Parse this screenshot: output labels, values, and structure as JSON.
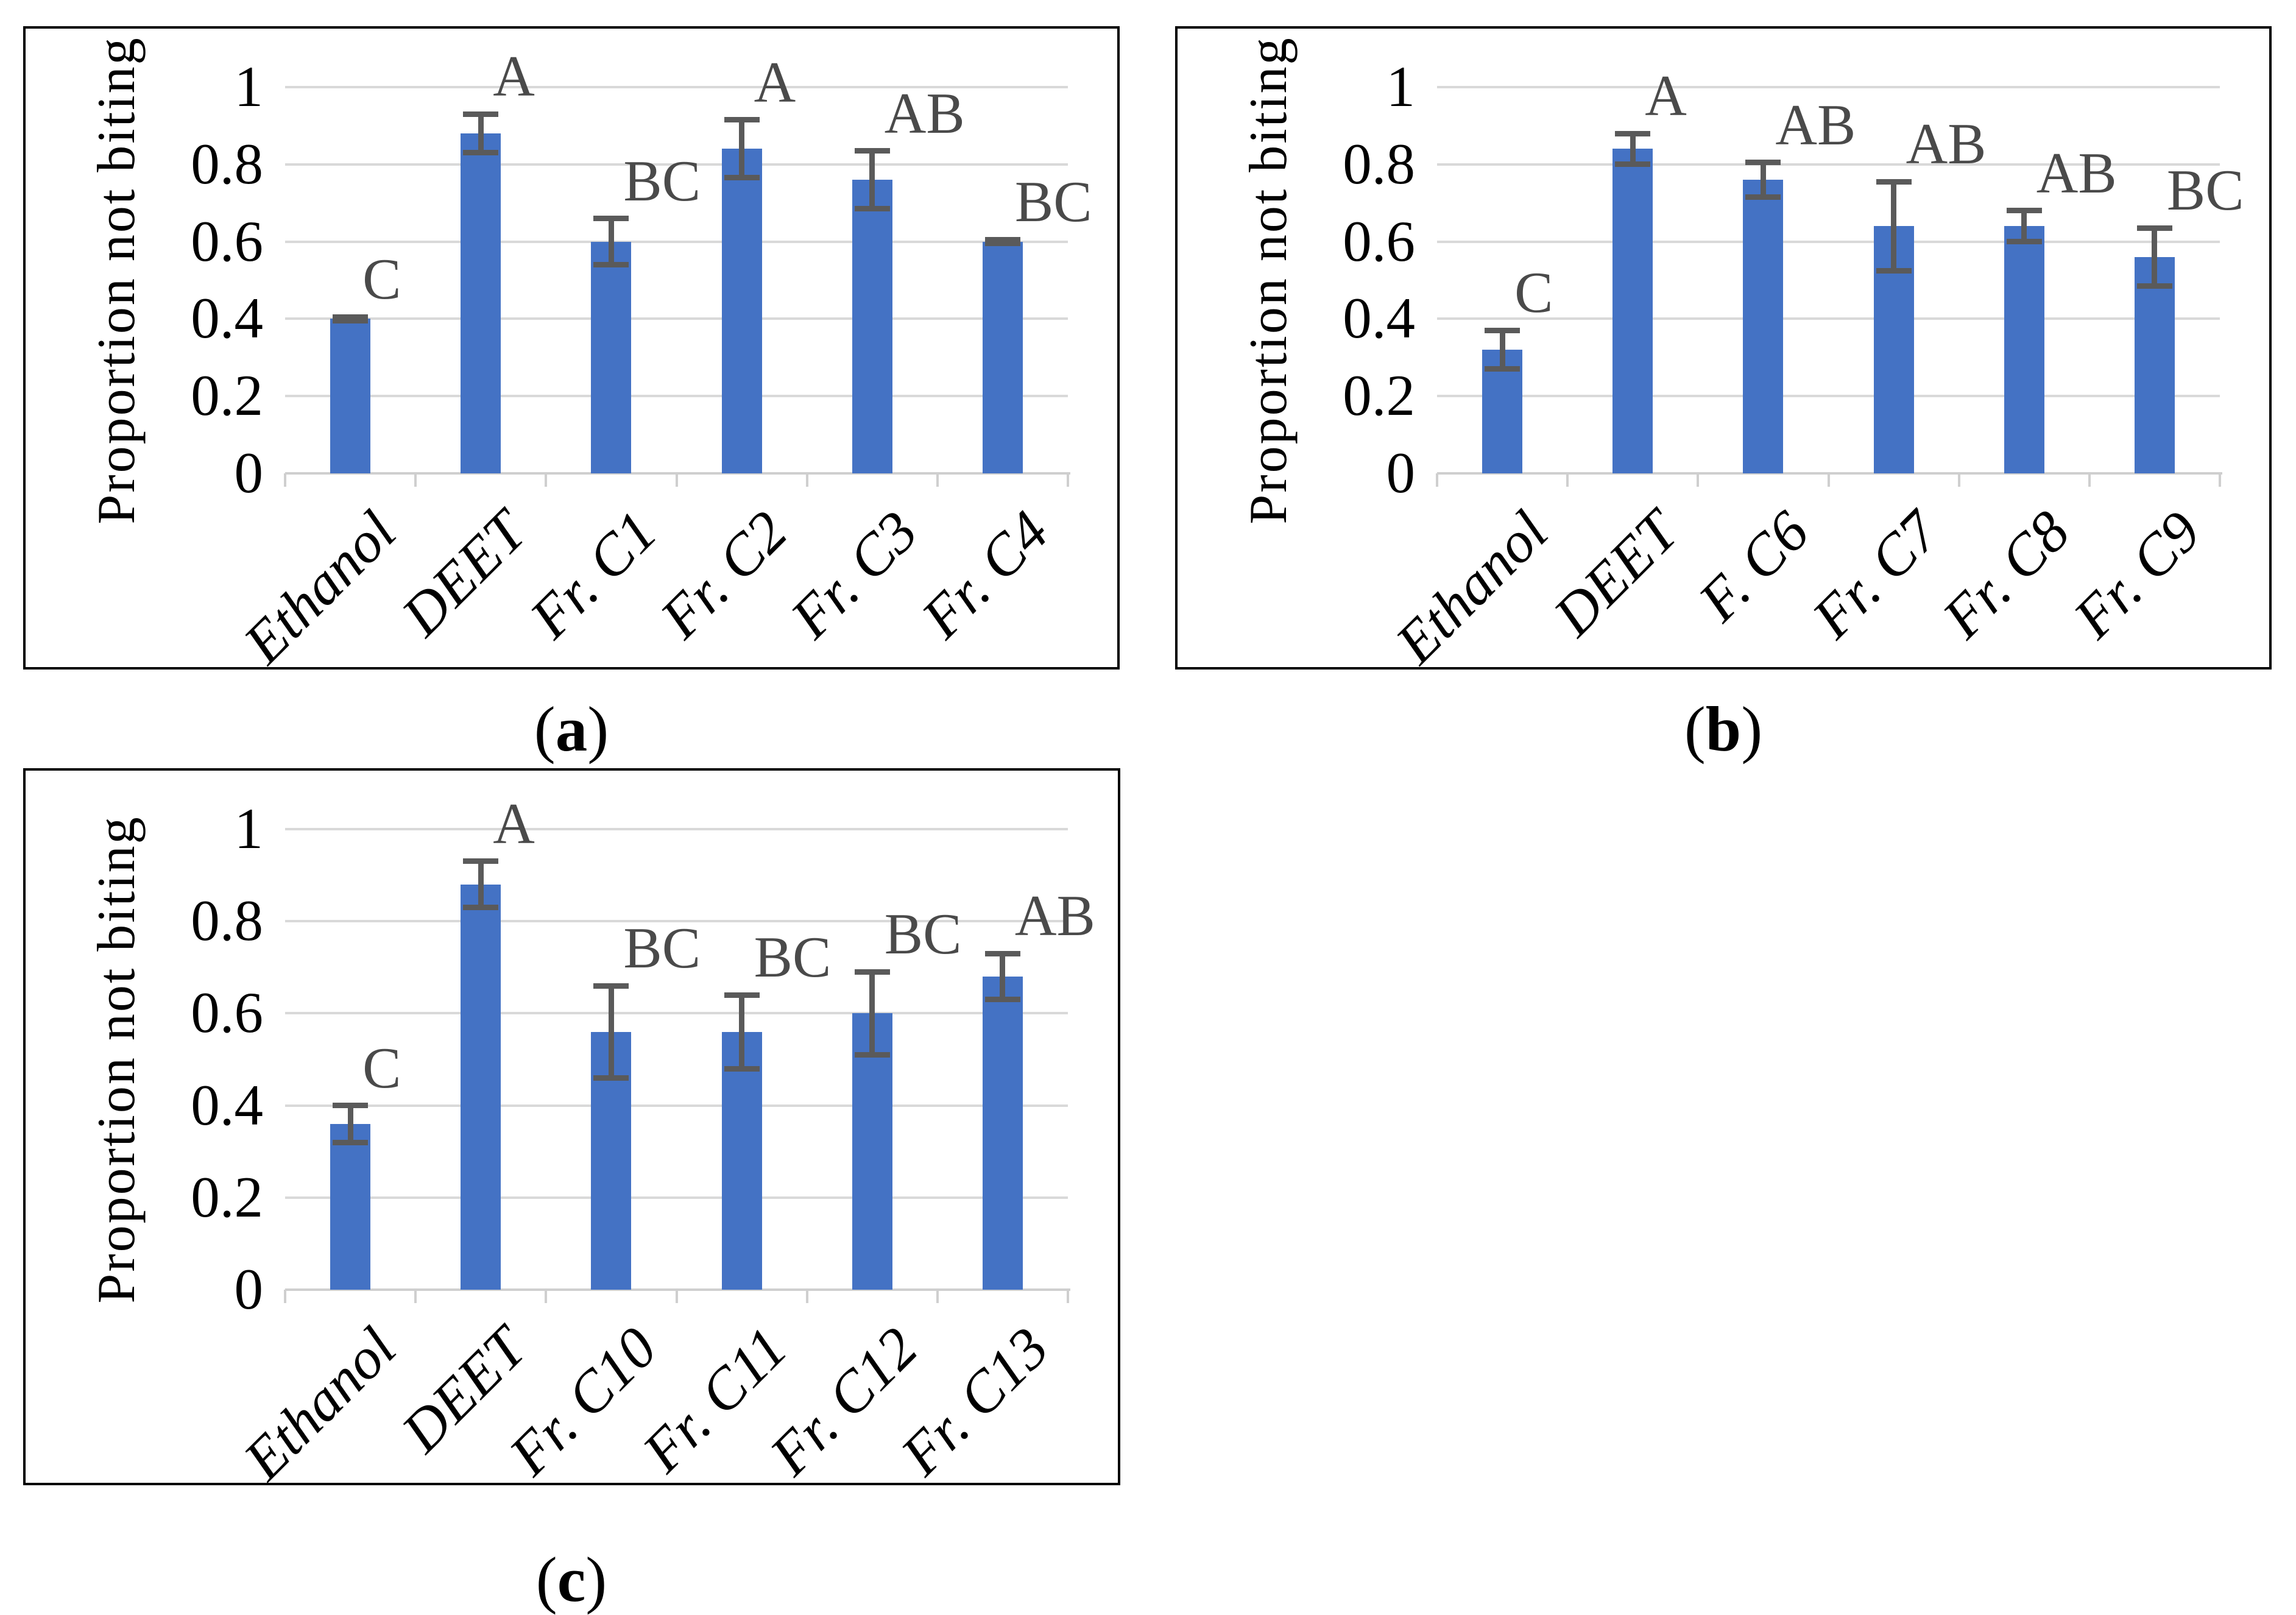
{
  "figure": {
    "background": "#ffffff",
    "ylabel_shared": "Proportion not biting"
  },
  "colors": {
    "bar": "#4472C4",
    "error_bar": "#5a5a5a",
    "letter": "#4a4a4a",
    "gridline": "#d9d9d9",
    "axis": "#cfcfcf",
    "panel_border": "#000000",
    "text": "#000000"
  },
  "captions": {
    "open": "(",
    "close": ")"
  },
  "chart_data": [
    {
      "type": "bar",
      "panel": "a",
      "caption_letter": "a",
      "title": "",
      "xlabel": "",
      "ylabel": "Proportion not biting",
      "ylim": [
        0,
        1
      ],
      "grid": true,
      "legend": null,
      "yticks": [
        "1",
        "0.8",
        "0.6",
        "0.4",
        "0.2",
        "0"
      ],
      "ytick_values": [
        1,
        0.8,
        0.6,
        0.4,
        0.2,
        0
      ],
      "categories": [
        "Ethanol",
        "DEET",
        "Fr. C1",
        "Fr. C2",
        "Fr. C3",
        "Fr. C4"
      ],
      "values": [
        0.4,
        0.88,
        0.6,
        0.84,
        0.76,
        0.6
      ],
      "errors": [
        0.005,
        0.05,
        0.06,
        0.075,
        0.075,
        0.005
      ],
      "letters": [
        "C",
        "A",
        "BC",
        "A",
        "AB",
        "BC"
      ]
    },
    {
      "type": "bar",
      "panel": "b",
      "caption_letter": "b",
      "title": "",
      "xlabel": "",
      "ylabel": "Proportion not biting",
      "ylim": [
        0,
        1
      ],
      "grid": true,
      "legend": null,
      "yticks": [
        "1",
        "0.8",
        "0.6",
        "0.4",
        "0.2",
        "0"
      ],
      "ytick_values": [
        1,
        0.8,
        0.6,
        0.4,
        0.2,
        0
      ],
      "categories": [
        "Ethanol",
        "DEET",
        "F. C6",
        "Fr. C7",
        "Fr. C8",
        "Fr. C9"
      ],
      "values": [
        0.32,
        0.84,
        0.76,
        0.64,
        0.64,
        0.56
      ],
      "errors": [
        0.05,
        0.04,
        0.045,
        0.115,
        0.04,
        0.075
      ],
      "letters": [
        "C",
        "A",
        "AB",
        "AB",
        "AB",
        "BC"
      ]
    },
    {
      "type": "bar",
      "panel": "c",
      "caption_letter": "c",
      "title": "",
      "xlabel": "",
      "ylabel": "Proportion not biting",
      "ylim": [
        0,
        1
      ],
      "grid": true,
      "legend": null,
      "yticks": [
        "1",
        "0.8",
        "0.6",
        "0.4",
        "0.2",
        "0"
      ],
      "ytick_values": [
        1,
        0.8,
        0.6,
        0.4,
        0.2,
        0
      ],
      "categories": [
        "Ethanol",
        "DEET",
        "Fr. C10",
        "Fr. C11",
        "Fr. C12",
        "Fr. C13"
      ],
      "values": [
        0.36,
        0.88,
        0.56,
        0.56,
        0.6,
        0.68
      ],
      "errors": [
        0.04,
        0.05,
        0.1,
        0.08,
        0.09,
        0.05
      ],
      "letters": [
        "C",
        "A",
        "BC",
        "BC",
        "BC",
        "AB"
      ]
    }
  ]
}
